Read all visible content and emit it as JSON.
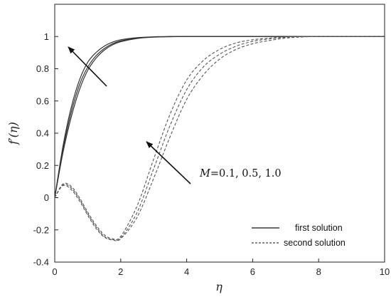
{
  "chart_data": {
    "type": "line",
    "title": "",
    "xlabel": "η",
    "ylabel": "f′(η)",
    "xlim": [
      0,
      10
    ],
    "ylim": [
      -0.4,
      1.2
    ],
    "x_ticks": [
      "0",
      "2",
      "4",
      "6",
      "8",
      "10"
    ],
    "y_ticks": [
      "-0.4",
      "-0.2",
      "0",
      "0.2",
      "0.4",
      "0.6",
      "0.8",
      "1"
    ],
    "grid": false,
    "legend_position": "lower-right",
    "legend": [
      {
        "label": "first solution",
        "style": "solid"
      },
      {
        "label": "second solution",
        "style": "dashed"
      }
    ],
    "annotation": {
      "param": "M",
      "values_text": "=0.1, 0.5, 1.0"
    },
    "x": [
      0,
      0.25,
      0.5,
      0.75,
      1.0,
      1.25,
      1.5,
      1.75,
      2.0,
      2.5,
      3.0,
      3.5,
      4.0,
      4.5,
      5.0,
      5.5,
      6.0,
      6.5,
      7.0,
      7.5,
      8.0,
      8.5,
      9.0,
      10.0
    ],
    "series": [
      {
        "style": "solid",
        "values": [
          0,
          0.32,
          0.56,
          0.73,
          0.84,
          0.9,
          0.94,
          0.965,
          0.98,
          0.993,
          0.998,
          1,
          1,
          1,
          1,
          1,
          1,
          1,
          1,
          1,
          1,
          1,
          1,
          1
        ]
      },
      {
        "style": "solid",
        "values": [
          0,
          0.3,
          0.53,
          0.7,
          0.81,
          0.88,
          0.925,
          0.955,
          0.973,
          0.99,
          0.997,
          0.999,
          1,
          1,
          1,
          1,
          1,
          1,
          1,
          1,
          1,
          1,
          1,
          1
        ]
      },
      {
        "style": "solid",
        "values": [
          0,
          0.28,
          0.5,
          0.67,
          0.79,
          0.865,
          0.915,
          0.948,
          0.968,
          0.988,
          0.996,
          0.999,
          1,
          1,
          1,
          1,
          1,
          1,
          1,
          1,
          1,
          1,
          1,
          1
        ]
      },
      {
        "style": "dashed",
        "values": [
          0,
          0.085,
          0.07,
          0.0,
          -0.09,
          -0.17,
          -0.23,
          -0.255,
          -0.24,
          -0.05,
          0.24,
          0.52,
          0.73,
          0.85,
          0.92,
          0.96,
          0.98,
          0.99,
          0.997,
          1,
          1,
          1,
          1,
          1
        ]
      },
      {
        "style": "dashed",
        "values": [
          0,
          0.08,
          0.06,
          -0.01,
          -0.1,
          -0.18,
          -0.24,
          -0.26,
          -0.25,
          -0.09,
          0.18,
          0.45,
          0.67,
          0.81,
          0.89,
          0.94,
          0.97,
          0.985,
          0.995,
          0.999,
          1,
          1,
          1,
          1
        ]
      },
      {
        "style": "dashed",
        "values": [
          0,
          0.075,
          0.05,
          -0.02,
          -0.11,
          -0.19,
          -0.245,
          -0.262,
          -0.255,
          -0.12,
          0.12,
          0.38,
          0.61,
          0.76,
          0.86,
          0.92,
          0.955,
          0.975,
          0.99,
          0.997,
          1,
          1,
          1,
          1
        ]
      }
    ]
  }
}
